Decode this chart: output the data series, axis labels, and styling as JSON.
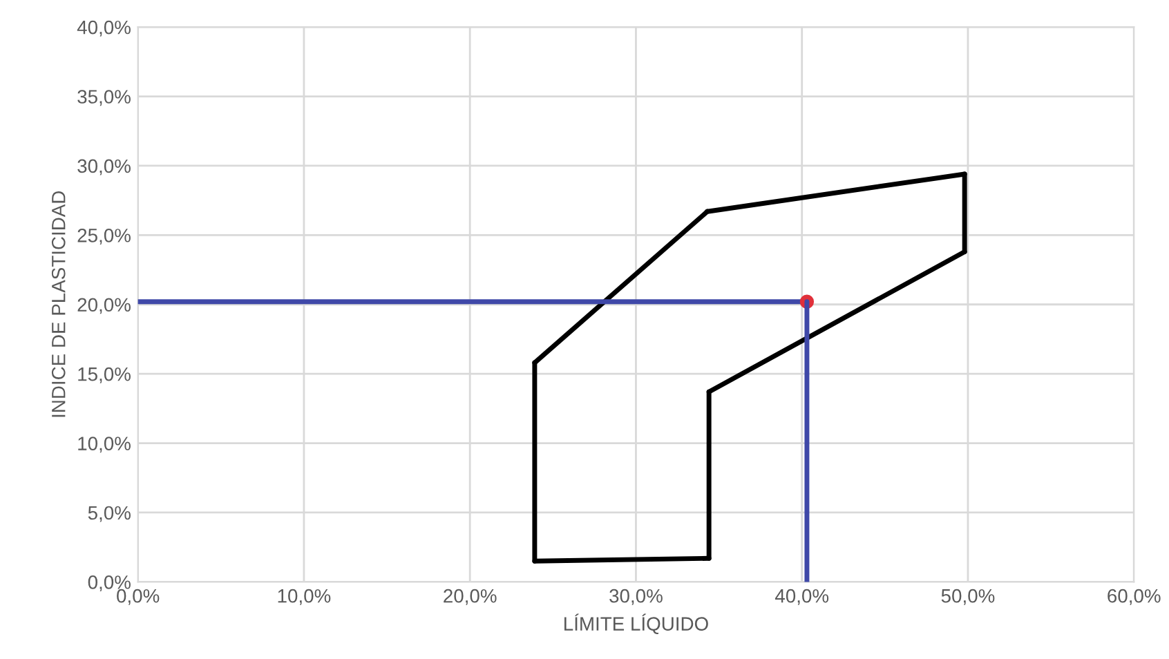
{
  "chart_data": {
    "type": "line",
    "xlabel": "LÍMITE LÍQUIDO",
    "ylabel": "INDICE DE PLASTICIDAD",
    "xlim": [
      0,
      60
    ],
    "ylim": [
      0,
      40
    ],
    "xticks": [
      {
        "value": 0,
        "label": "0,0%"
      },
      {
        "value": 10,
        "label": "10,0%"
      },
      {
        "value": 20,
        "label": "20,0%"
      },
      {
        "value": 30,
        "label": "30,0%"
      },
      {
        "value": 40,
        "label": "40,0%"
      },
      {
        "value": 50,
        "label": "50,0%"
      },
      {
        "value": 60,
        "label": "60,0%"
      }
    ],
    "yticks": [
      {
        "value": 0,
        "label": "0,0%"
      },
      {
        "value": 5,
        "label": "5,0%"
      },
      {
        "value": 10,
        "label": "10,0%"
      },
      {
        "value": 15,
        "label": "15,0%"
      },
      {
        "value": 20,
        "label": "20,0%"
      },
      {
        "value": 25,
        "label": "25,0%"
      },
      {
        "value": 30,
        "label": "30,0%"
      },
      {
        "value": 35,
        "label": "35,0%"
      },
      {
        "value": 40,
        "label": "40,0%"
      }
    ],
    "grid": true,
    "series": [
      {
        "color": "#000000",
        "x": [
          23.9,
          23.9
        ],
        "values": [
          1.5,
          15.8
        ]
      },
      {
        "color": "#000000",
        "x": [
          23.9,
          34.3
        ],
        "values": [
          15.8,
          26.7
        ]
      },
      {
        "color": "#000000",
        "x": [
          34.3,
          49.8
        ],
        "values": [
          26.7,
          29.4
        ]
      },
      {
        "color": "#000000",
        "x": [
          49.8,
          49.8
        ],
        "values": [
          23.8,
          29.4
        ]
      },
      {
        "color": "#000000",
        "x": [
          34.4,
          49.8
        ],
        "values": [
          13.7,
          23.8
        ]
      },
      {
        "color": "#000000",
        "x": [
          34.4,
          34.4
        ],
        "values": [
          1.7,
          13.7
        ]
      },
      {
        "color": "#000000",
        "x": [
          23.9,
          34.4
        ],
        "values": [
          1.5,
          1.7
        ]
      },
      {
        "color": "#3f48a8",
        "x": [
          0,
          40.3
        ],
        "values": [
          20.2,
          20.2
        ]
      },
      {
        "color": "#3f48a8",
        "x": [
          40.3,
          40.3
        ],
        "values": [
          0,
          20.2
        ]
      },
      {
        "type": "scatter",
        "color": "#e0303a",
        "x": [
          40.3
        ],
        "values": [
          20.2
        ]
      }
    ]
  }
}
